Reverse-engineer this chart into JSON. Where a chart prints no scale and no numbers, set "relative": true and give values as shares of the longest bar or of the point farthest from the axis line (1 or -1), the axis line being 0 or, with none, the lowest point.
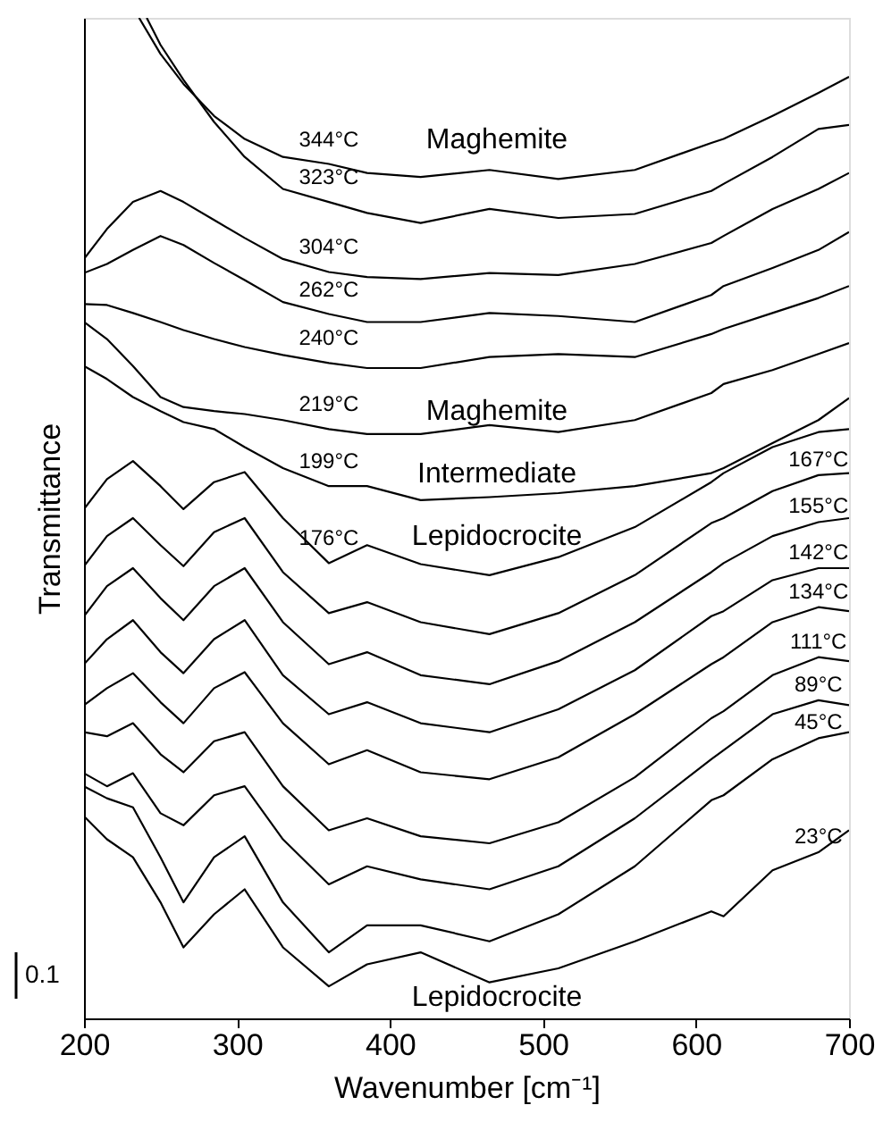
{
  "chart_data": {
    "type": "line",
    "relative": true,
    "xlabel": "Wavenumber [cm⁻¹]",
    "ylabel": "Transmittance",
    "xlim": [
      200,
      700
    ],
    "xticks": [
      200,
      300,
      400,
      500,
      600,
      700
    ],
    "grid": false,
    "marker": "none",
    "line_style": "solid",
    "x": [
      200,
      215,
      232,
      250,
      265,
      285,
      305,
      330,
      360,
      385,
      420,
      465,
      510,
      560,
      610,
      618,
      650,
      680,
      700
    ],
    "series": [
      {
        "name": "344°C",
        "color": "#000000",
        "x": [
          236,
          250,
          265,
          285,
          305,
          330,
          360,
          385,
          420,
          465,
          510,
          560,
          610,
          618,
          650,
          680,
          700
        ],
        "values": [
          1.0,
          0.964,
          0.934,
          0.902,
          0.879,
          0.861,
          0.854,
          0.845,
          0.841,
          0.848,
          0.839,
          0.848,
          0.875,
          0.879,
          0.902,
          0.925,
          0.941
        ]
      },
      {
        "name": "323°C",
        "color": "#000000",
        "x": [
          241,
          250,
          265,
          285,
          305,
          330,
          360,
          385,
          420,
          465,
          510,
          560,
          610,
          618,
          650,
          680,
          700
        ],
        "values": [
          1.0,
          0.973,
          0.938,
          0.896,
          0.861,
          0.829,
          0.816,
          0.805,
          0.795,
          0.809,
          0.8,
          0.804,
          0.827,
          0.834,
          0.861,
          0.889,
          0.893
        ]
      },
      {
        "name": "304°C",
        "color": "#000000",
        "values": [
          0.759,
          0.789,
          0.816,
          0.827,
          0.816,
          0.798,
          0.78,
          0.759,
          0.746,
          0.741,
          0.739,
          0.745,
          0.743,
          0.754,
          0.775,
          0.782,
          0.809,
          0.829,
          0.845
        ]
      },
      {
        "name": "262°C",
        "color": "#000000",
        "values": [
          0.745,
          0.754,
          0.768,
          0.782,
          0.773,
          0.755,
          0.738,
          0.716,
          0.704,
          0.696,
          0.696,
          0.705,
          0.702,
          0.696,
          0.723,
          0.732,
          0.75,
          0.768,
          0.786
        ]
      },
      {
        "name": "240°C",
        "color": "#000000",
        "values": [
          0.714,
          0.713,
          0.705,
          0.696,
          0.688,
          0.679,
          0.671,
          0.663,
          0.655,
          0.65,
          0.65,
          0.661,
          0.664,
          0.661,
          0.684,
          0.689,
          0.705,
          0.72,
          0.732
        ]
      },
      {
        "name": "219°C",
        "color": "#000000",
        "values": [
          0.696,
          0.679,
          0.652,
          0.621,
          0.611,
          0.607,
          0.604,
          0.598,
          0.589,
          0.584,
          0.584,
          0.593,
          0.586,
          0.598,
          0.625,
          0.634,
          0.648,
          0.664,
          0.675
        ]
      },
      {
        "name": "199°C",
        "color": "#000000",
        "values": [
          0.652,
          0.639,
          0.621,
          0.607,
          0.596,
          0.589,
          0.571,
          0.55,
          0.532,
          0.532,
          0.518,
          0.521,
          0.525,
          0.532,
          0.545,
          0.55,
          0.575,
          0.598,
          0.62
        ]
      },
      {
        "name": "176°C",
        "color": "#000000",
        "values": [
          0.509,
          0.539,
          0.557,
          0.532,
          0.509,
          0.536,
          0.546,
          0.5,
          0.455,
          0.473,
          0.454,
          0.443,
          0.461,
          0.491,
          0.536,
          0.545,
          0.571,
          0.586,
          0.589
        ]
      },
      {
        "name": "167°C",
        "color": "#000000",
        "values": [
          0.452,
          0.482,
          0.5,
          0.473,
          0.452,
          0.486,
          0.5,
          0.446,
          0.405,
          0.416,
          0.396,
          0.384,
          0.405,
          0.443,
          0.495,
          0.5,
          0.527,
          0.543,
          0.545
        ]
      },
      {
        "name": "155°C",
        "color": "#000000",
        "values": [
          0.402,
          0.432,
          0.45,
          0.42,
          0.398,
          0.432,
          0.45,
          0.396,
          0.354,
          0.366,
          0.343,
          0.334,
          0.357,
          0.396,
          0.446,
          0.455,
          0.482,
          0.496,
          0.5
        ]
      },
      {
        "name": "142°C",
        "color": "#000000",
        "values": [
          0.354,
          0.379,
          0.398,
          0.366,
          0.345,
          0.379,
          0.398,
          0.343,
          0.304,
          0.316,
          0.295,
          0.286,
          0.309,
          0.348,
          0.402,
          0.407,
          0.438,
          0.45,
          0.45
        ]
      },
      {
        "name": "134°C",
        "color": "#000000",
        "values": [
          0.313,
          0.33,
          0.345,
          0.316,
          0.295,
          0.33,
          0.346,
          0.295,
          0.254,
          0.268,
          0.246,
          0.239,
          0.261,
          0.304,
          0.354,
          0.361,
          0.396,
          0.411,
          0.407
        ]
      },
      {
        "name": "111°C",
        "color": "#000000",
        "values": [
          0.286,
          0.282,
          0.295,
          0.264,
          0.246,
          0.277,
          0.286,
          0.232,
          0.188,
          0.2,
          0.182,
          0.175,
          0.196,
          0.241,
          0.3,
          0.307,
          0.343,
          0.361,
          0.357
        ]
      },
      {
        "name": "89°C",
        "color": "#000000",
        "values": [
          0.245,
          0.232,
          0.245,
          0.205,
          0.193,
          0.223,
          0.232,
          0.179,
          0.134,
          0.152,
          0.139,
          0.129,
          0.152,
          0.2,
          0.259,
          0.268,
          0.304,
          0.318,
          0.313
        ]
      },
      {
        "name": "45°C",
        "color": "#000000",
        "values": [
          0.232,
          0.22,
          0.211,
          0.161,
          0.116,
          0.161,
          0.182,
          0.116,
          0.066,
          0.093,
          0.093,
          0.077,
          0.104,
          0.152,
          0.218,
          0.223,
          0.259,
          0.28,
          0.286
        ]
      },
      {
        "name": "23°C",
        "color": "#000000",
        "values": [
          0.202,
          0.179,
          0.161,
          0.116,
          0.071,
          0.104,
          0.129,
          0.071,
          0.032,
          0.054,
          0.066,
          0.036,
          0.05,
          0.077,
          0.107,
          0.102,
          0.148,
          0.166,
          0.188
        ]
      }
    ],
    "annotations": [
      "Maghemite",
      "Maghemite",
      "Intermediate",
      "Lepidocrocite",
      "Lepidocrocite",
      "0.1"
    ]
  }
}
